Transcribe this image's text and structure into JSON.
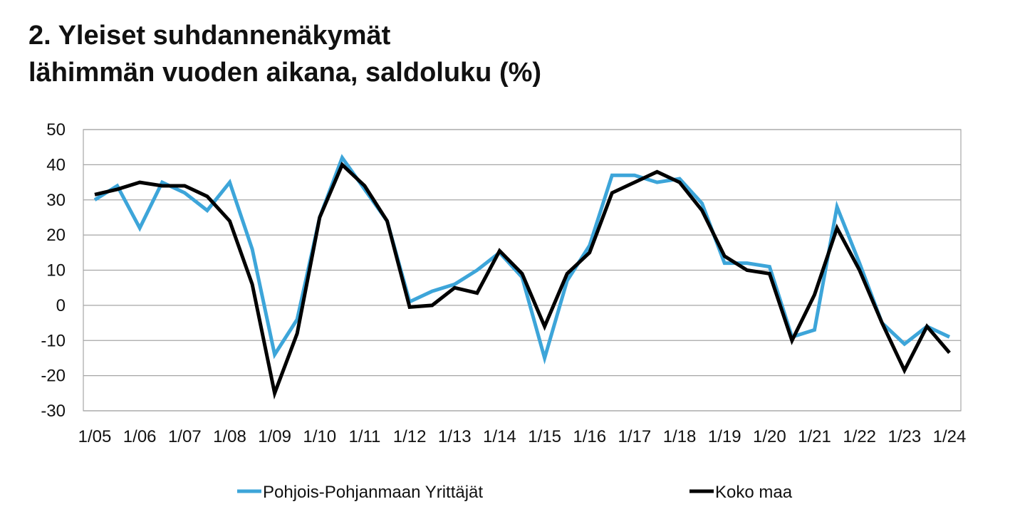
{
  "title_line1": "2. Yleiset suhdannenäkymät",
  "title_line2": "lähimmän vuoden aikana, saldoluku (%)",
  "chart_data": {
    "type": "line",
    "title": "2. Yleiset suhdannenäkymät lähimmän vuoden aikana, saldoluku (%)",
    "xlabel": "",
    "ylabel": "",
    "ylim": [
      -30,
      50
    ],
    "yticks": [
      50,
      40,
      30,
      20,
      10,
      0,
      -10,
      -20,
      -30
    ],
    "x_tick_labels": [
      "1/05",
      "1/06",
      "1/07",
      "1/08",
      "1/09",
      "1/10",
      "1/11",
      "1/12",
      "1/13",
      "1/14",
      "1/15",
      "1/16",
      "1/17",
      "1/18",
      "1/19",
      "1/20",
      "1/21",
      "1/22",
      "1/23",
      "1/24"
    ],
    "grid": true,
    "legend_position": "bottom",
    "series": [
      {
        "name": "Pohjois-Pohjanmaan Yrittäjät",
        "color": "#3da5d9",
        "values": [
          30,
          34,
          22,
          35,
          32,
          27,
          35,
          16,
          -14,
          -4,
          25,
          42,
          33,
          24,
          1,
          4,
          6,
          10,
          15,
          8,
          -15,
          7,
          17,
          37,
          37,
          35,
          36,
          29,
          12,
          12,
          11,
          -9,
          -7,
          28,
          12,
          -5,
          -11,
          -6,
          -9
        ]
      },
      {
        "name": "Koko maa",
        "color": "#000000",
        "values": [
          31.5,
          33,
          35,
          34,
          34,
          31,
          24,
          6,
          -25,
          -8,
          25,
          40,
          34,
          24,
          -0.5,
          0,
          5,
          3.5,
          15.5,
          9,
          -6,
          9,
          15,
          32,
          35,
          38,
          35,
          27,
          14,
          10,
          9,
          -10,
          3,
          22,
          10,
          -5,
          -18.5,
          -6,
          -13.5
        ]
      }
    ]
  }
}
